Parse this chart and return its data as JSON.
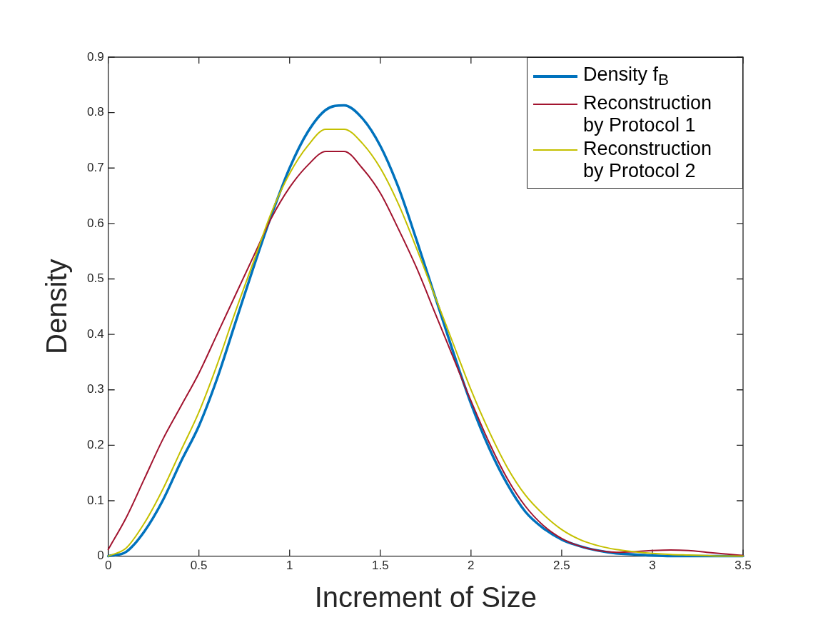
{
  "chart_data": {
    "type": "line",
    "xlabel": "Increment of Size",
    "ylabel": "Density",
    "x": [
      0,
      0.1,
      0.2,
      0.3,
      0.4,
      0.5,
      0.6,
      0.7,
      0.8,
      0.9,
      1,
      1.1,
      1.2,
      1.3,
      1.4,
      1.5,
      1.6,
      1.7,
      1.8,
      1.9,
      2,
      2.1,
      2.2,
      2.3,
      2.4,
      2.5,
      2.6,
      2.7,
      2.8,
      2.9,
      3,
      3.1,
      3.2,
      3.3,
      3.4,
      3.5
    ],
    "series": [
      {
        "name": "Density f$_{B}$",
        "color": "#0072bd",
        "values": [
          0,
          0.008,
          0.045,
          0.1,
          0.17,
          0.235,
          0.32,
          0.42,
          0.52,
          0.615,
          0.7,
          0.765,
          0.805,
          0.813,
          0.79,
          0.74,
          0.665,
          0.57,
          0.47,
          0.37,
          0.275,
          0.195,
          0.13,
          0.08,
          0.05,
          0.03,
          0.018,
          0.01,
          0.005,
          0.003,
          0.001,
          0,
          0,
          0,
          0,
          0
        ]
      },
      {
        "name": "Reconstruction by Protocol 1",
        "color": "#a2142f",
        "values": [
          0.012,
          0.07,
          0.14,
          0.21,
          0.27,
          0.33,
          0.4,
          0.47,
          0.54,
          0.61,
          0.665,
          0.705,
          0.73,
          0.73,
          0.7,
          0.655,
          0.59,
          0.52,
          0.44,
          0.36,
          0.28,
          0.205,
          0.14,
          0.09,
          0.055,
          0.032,
          0.018,
          0.01,
          0.007,
          0.008,
          0.01,
          0.011,
          0.01,
          0.007,
          0.004,
          0.001
        ]
      },
      {
        "name": "Reconstruction by Protocol 2",
        "color": "#c4c000",
        "values": [
          0,
          0.015,
          0.06,
          0.12,
          0.19,
          0.26,
          0.345,
          0.44,
          0.53,
          0.62,
          0.69,
          0.74,
          0.77,
          0.77,
          0.745,
          0.7,
          0.635,
          0.555,
          0.47,
          0.385,
          0.3,
          0.225,
          0.16,
          0.11,
          0.075,
          0.048,
          0.03,
          0.019,
          0.012,
          0.008,
          0.005,
          0.003,
          0.002,
          0.001,
          0,
          0
        ]
      }
    ],
    "xlim": [
      0,
      3.5
    ],
    "xticks": [
      0,
      0.5,
      1,
      1.5,
      2,
      2.5,
      3,
      3.5
    ],
    "ylim": [
      0,
      0.9
    ],
    "yticks": [
      0,
      0.1,
      0.2,
      0.3,
      0.4,
      0.5,
      0.6,
      0.7,
      0.8,
      0.9
    ],
    "grid": false,
    "legend": "top right",
    "marker": "none",
    "line_style": "solid"
  }
}
